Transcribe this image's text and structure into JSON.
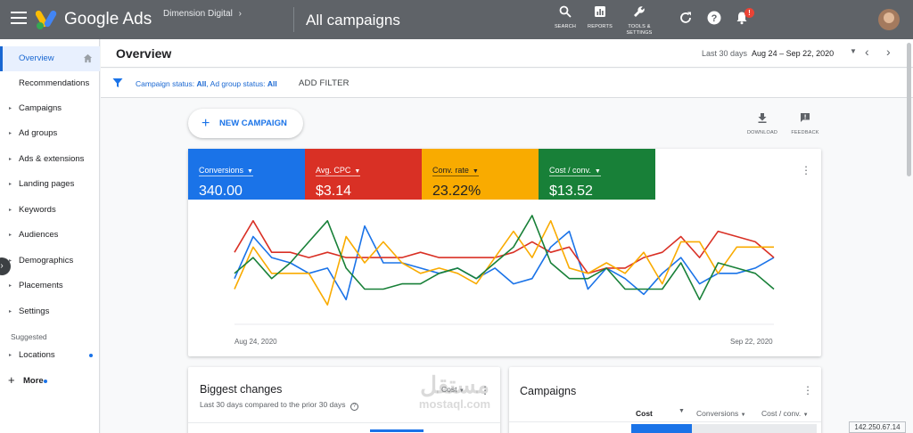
{
  "topbar": {
    "app_name": "Google Ads",
    "account": "Dimension Digital",
    "account_chevron": "›",
    "page_title": "All campaigns",
    "actions": [
      {
        "icon": "search-icon",
        "label": "SEARCH"
      },
      {
        "icon": "reports-icon",
        "label": "REPORTS"
      },
      {
        "icon": "tools-icon",
        "label": "TOOLS &",
        "label2": "SETTINGS"
      }
    ],
    "notification_count": "!"
  },
  "sidebar": {
    "items": [
      {
        "label": "Overview",
        "active": true
      },
      {
        "label": "Recommendations"
      },
      {
        "label": "Campaigns",
        "caret": true
      },
      {
        "label": "Ad groups",
        "caret": true
      },
      {
        "label": "Ads & extensions",
        "caret": true
      },
      {
        "label": "Landing pages",
        "caret": true
      },
      {
        "label": "Keywords",
        "caret": true
      },
      {
        "label": "Audiences",
        "caret": true
      },
      {
        "label": "Demographics",
        "caret": true
      },
      {
        "label": "Placements",
        "caret": true
      },
      {
        "label": "Settings",
        "caret": true
      }
    ],
    "suggested_label": "Suggested",
    "locations_label": "Locations",
    "more_label": "More",
    "more_plus": "+"
  },
  "overview": {
    "title": "Overview",
    "date_label": "Last 30 days",
    "date_range": "Aug 24 – Sep 22, 2020"
  },
  "filter": {
    "prefix1": "Campaign status: ",
    "value1": "All",
    "prefix2": ", Ad group status: ",
    "value2": "All",
    "add_label": "ADD FILTER"
  },
  "actions": {
    "new_campaign": "NEW CAMPAIGN",
    "download": "DOWNLOAD",
    "feedback": "FEEDBACK"
  },
  "metrics": [
    {
      "label": "Conversions",
      "value": "340.00",
      "color": "#1a73e8"
    },
    {
      "label": "Avg. CPC",
      "value": "$3.14",
      "color": "#d93025"
    },
    {
      "label": "Conv. rate",
      "value": "23.22%",
      "color": "#f9ab00"
    },
    {
      "label": "Cost / conv.",
      "value": "$13.52",
      "color": "#188038"
    }
  ],
  "chart_data": {
    "type": "line",
    "x_start_label": "Aug 24, 2020",
    "x_end_label": "Sep 22, 2020",
    "x": [
      "Aug 24",
      "Aug 25",
      "Aug 26",
      "Aug 27",
      "Aug 28",
      "Aug 29",
      "Aug 30",
      "Aug 31",
      "Sep 1",
      "Sep 2",
      "Sep 3",
      "Sep 4",
      "Sep 5",
      "Sep 6",
      "Sep 7",
      "Sep 8",
      "Sep 9",
      "Sep 10",
      "Sep 11",
      "Sep 12",
      "Sep 13",
      "Sep 14",
      "Sep 15",
      "Sep 16",
      "Sep 17",
      "Sep 18",
      "Sep 19",
      "Sep 20",
      "Sep 21",
      "Sep 22"
    ],
    "ylim": [
      0,
      100
    ],
    "grid": false,
    "series": [
      {
        "color": "#1a73e8",
        "values": [
          35,
          75,
          55,
          50,
          40,
          45,
          15,
          85,
          50,
          50,
          45,
          40,
          45,
          35,
          45,
          30,
          35,
          65,
          80,
          25,
          45,
          35,
          20,
          40,
          55,
          30,
          40,
          40,
          45,
          55
        ]
      },
      {
        "color": "#d93025",
        "values": [
          60,
          90,
          60,
          60,
          55,
          60,
          55,
          55,
          55,
          55,
          60,
          55,
          55,
          55,
          55,
          60,
          70,
          60,
          65,
          40,
          45,
          45,
          55,
          60,
          75,
          55,
          80,
          75,
          70,
          55
        ]
      },
      {
        "color": "#f9ab00",
        "values": [
          25,
          65,
          40,
          40,
          40,
          10,
          75,
          50,
          70,
          50,
          40,
          45,
          40,
          30,
          55,
          80,
          55,
          90,
          45,
          40,
          50,
          40,
          60,
          30,
          70,
          70,
          40,
          65,
          65,
          65
        ]
      },
      {
        "color": "#188038",
        "values": [
          40,
          55,
          35,
          50,
          70,
          90,
          45,
          25,
          25,
          30,
          30,
          40,
          45,
          35,
          50,
          65,
          95,
          50,
          35,
          35,
          45,
          25,
          25,
          25,
          50,
          15,
          50,
          45,
          40,
          25
        ]
      }
    ]
  },
  "biggest_changes": {
    "title": "Biggest changes",
    "subtitle": "Last 30 days compared to the prior 30 days",
    "sort_label": "Cost"
  },
  "campaigns_card": {
    "title": "Campaigns",
    "columns": [
      "Cost",
      "Conversions",
      "Cost / conv."
    ]
  },
  "watermark": {
    "line1": "مستقل",
    "line2": "mostaql.com"
  },
  "ip_badge": "142.250.67.14"
}
